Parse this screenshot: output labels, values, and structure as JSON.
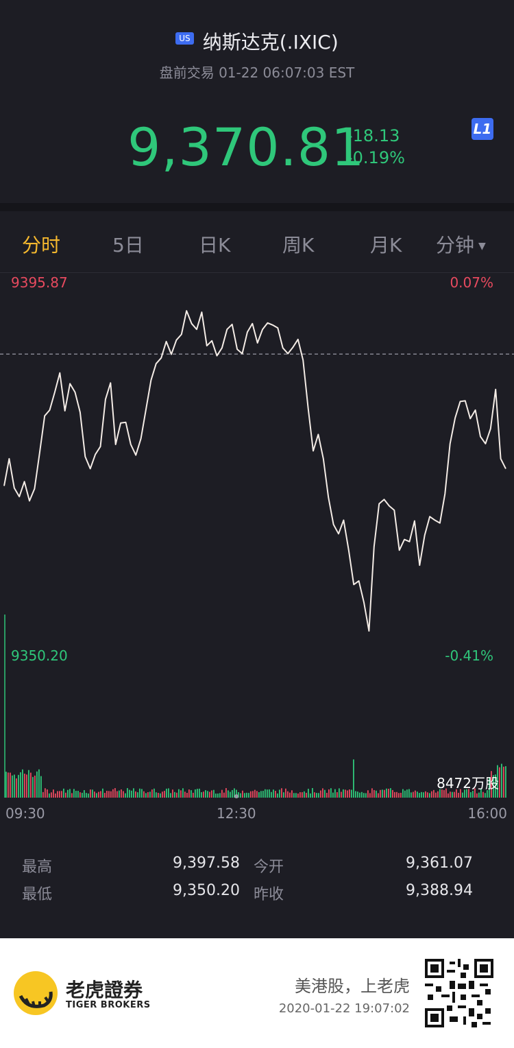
{
  "header": {
    "market_badge": "US",
    "title": "纳斯达克(.IXIC)",
    "subtitle": "盘前交易 01-22 06:07:03 EST",
    "price": "9,370.81",
    "change": "-18.13",
    "change_pct": "-0.19%",
    "level_badge": "L1",
    "price_color": "#2fc77a"
  },
  "tabs": [
    {
      "label": "分时",
      "active": true
    },
    {
      "label": "5日"
    },
    {
      "label": "日K"
    },
    {
      "label": "周K"
    },
    {
      "label": "月K"
    },
    {
      "label": "分钟"
    }
  ],
  "chart": {
    "high_label": "9395.87",
    "high_pct": "0.07%",
    "low_label": "9350.20",
    "low_pct": "-0.41%",
    "volume_label": "8472万股",
    "time_start": "09:30",
    "time_mid": "12:30",
    "time_end": "16:00"
  },
  "stats": {
    "high_label": "最高",
    "high_value": "9,397.58",
    "open_label": "今开",
    "open_value": "9,361.07",
    "low_label": "最低",
    "low_value": "9,350.20",
    "prev_label": "昨收",
    "prev_value": "9,388.94"
  },
  "footer": {
    "brand_cn": "老虎證券",
    "brand_en": "TIGER BROKERS",
    "slogan": "美港股，上老虎",
    "timestamp": "2020-01-22 19:07:02"
  },
  "colors": {
    "up": "#e84a5f",
    "down": "#2fc77a",
    "accent": "#f5b82e",
    "line": "#f4ece6"
  },
  "chart_data": {
    "type": "line",
    "x_start": "09:30",
    "x_end": "16:00",
    "y_range": [
      9350.2,
      9395.87
    ],
    "prev_close": 9388.94,
    "values": [
      9370.5,
      9374.3,
      9370.2,
      9369.0,
      9371.1,
      9368.4,
      9370.1,
      9375.1,
      9380.3,
      9381.1,
      9383.6,
      9386.3,
      9381.0,
      9384.8,
      9383.6,
      9380.8,
      9374.6,
      9372.9,
      9374.9,
      9376.0,
      9382.6,
      9384.9,
      9376.3,
      9379.3,
      9379.4,
      9376.3,
      9374.8,
      9377.1,
      9381.2,
      9385.3,
      9387.6,
      9388.4,
      9390.7,
      9388.9,
      9390.9,
      9391.7,
      9395.0,
      9393.2,
      9392.4,
      9394.8,
      9390.1,
      9390.8,
      9388.7,
      9389.8,
      9392.4,
      9393.1,
      9389.6,
      9389.0,
      9392.0,
      9393.2,
      9390.5,
      9392.4,
      9393.3,
      9393.0,
      9392.6,
      9389.8,
      9389.0,
      9389.9,
      9391.0,
      9388.1,
      9381.4,
      9375.4,
      9377.7,
      9374.3,
      9368.9,
      9365.1,
      9363.8,
      9365.7,
      9361.5,
      9356.7,
      9357.2,
      9354.2,
      9350.2,
      9362.0,
      9368.0,
      9368.6,
      9367.7,
      9367.1,
      9361.5,
      9363.0,
      9362.7,
      9365.6,
      9359.4,
      9363.6,
      9366.2,
      9365.7,
      9365.3,
      9369.4,
      9376.4,
      9380.0,
      9382.3,
      9382.4,
      9379.9,
      9381.1,
      9377.4,
      9376.4,
      9378.5,
      9384.0,
      9374.3,
      9372.9
    ]
  }
}
